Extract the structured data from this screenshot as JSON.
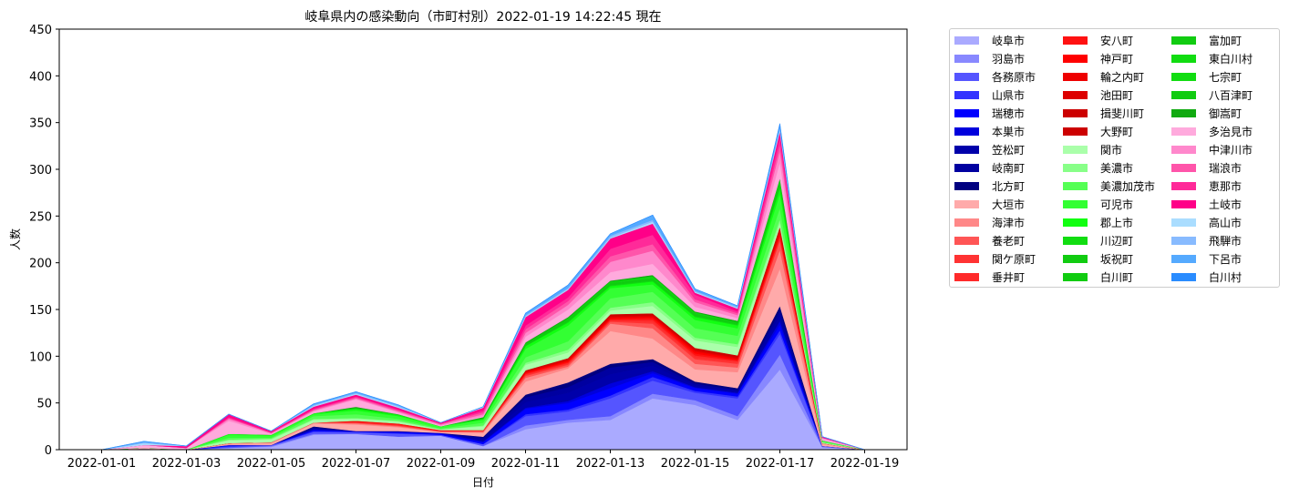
{
  "chart_data": {
    "type": "area",
    "stacked": true,
    "title": "岐阜県内の感染動向（市町村別）2022-01-19 14:22:45 現在",
    "xlabel": "日付",
    "ylabel": "人数",
    "ylim": [
      0,
      450
    ],
    "yticks": [
      "0",
      "50",
      "100",
      "150",
      "200",
      "250",
      "300",
      "350",
      "400",
      "450"
    ],
    "x": [
      "2022-01-01",
      "2022-01-02",
      "2022-01-03",
      "2022-01-04",
      "2022-01-05",
      "2022-01-06",
      "2022-01-07",
      "2022-01-08",
      "2022-01-09",
      "2022-01-10",
      "2022-01-11",
      "2022-01-12",
      "2022-01-13",
      "2022-01-14",
      "2022-01-15",
      "2022-01-16",
      "2022-01-17",
      "2022-01-18",
      "2022-01-19"
    ],
    "xticks": [
      "2022-01-01",
      "2022-01-03",
      "2022-01-05",
      "2022-01-07",
      "2022-01-09",
      "2022-01-11",
      "2022-01-13",
      "2022-01-15",
      "2022-01-17",
      "2022-01-19"
    ],
    "grid": false,
    "legend_position": "outside-right",
    "series": [
      {
        "name": "岐阜市",
        "color": "#aaaaff",
        "values": [
          0,
          1,
          0,
          2,
          3,
          16,
          17,
          14,
          15,
          4,
          22,
          29,
          32,
          55,
          48,
          32,
          86,
          3,
          0
        ]
      },
      {
        "name": "羽島市",
        "color": "#8888ff",
        "values": [
          0,
          0,
          0,
          0,
          1,
          1,
          0,
          0,
          0,
          0,
          4,
          3,
          4,
          5,
          5,
          4,
          16,
          0,
          0
        ]
      },
      {
        "name": "各務原市",
        "color": "#5555ff",
        "values": [
          0,
          0,
          0,
          1,
          1,
          2,
          2,
          3,
          1,
          2,
          10,
          9,
          19,
          14,
          8,
          19,
          22,
          1,
          0
        ]
      },
      {
        "name": "山県市",
        "color": "#3333ff",
        "values": [
          0,
          0,
          0,
          1,
          0,
          1,
          0,
          1,
          0,
          0,
          2,
          2,
          3,
          4,
          2,
          2,
          4,
          0,
          0
        ]
      },
      {
        "name": "瑞穂市",
        "color": "#0000ff",
        "values": [
          0,
          0,
          0,
          1,
          0,
          1,
          0,
          1,
          1,
          2,
          6,
          7,
          8,
          4,
          3,
          3,
          6,
          0,
          0
        ]
      },
      {
        "name": "本巣市",
        "color": "#0000dd",
        "values": [
          0,
          0,
          0,
          0,
          0,
          1,
          1,
          0,
          1,
          1,
          1,
          2,
          5,
          2,
          1,
          1,
          4,
          0,
          0
        ]
      },
      {
        "name": "笠松町",
        "color": "#0000aa",
        "values": [
          0,
          0,
          0,
          0,
          0,
          1,
          0,
          1,
          0,
          2,
          6,
          9,
          10,
          6,
          2,
          2,
          6,
          0,
          0
        ]
      },
      {
        "name": "岐南町",
        "color": "#0000a0",
        "values": [
          0,
          0,
          0,
          0,
          0,
          1,
          0,
          0,
          0,
          2,
          5,
          6,
          7,
          4,
          2,
          1,
          5,
          0,
          0
        ]
      },
      {
        "name": "北方町",
        "color": "#000080",
        "values": [
          0,
          0,
          0,
          0,
          0,
          1,
          0,
          0,
          0,
          1,
          3,
          5,
          4,
          3,
          2,
          2,
          5,
          0,
          0
        ]
      },
      {
        "name": "大垣市",
        "color": "#ffaaaa",
        "values": [
          0,
          1,
          0,
          1,
          2,
          3,
          7,
          4,
          1,
          4,
          14,
          15,
          35,
          22,
          13,
          17,
          40,
          2,
          0
        ]
      },
      {
        "name": "海津市",
        "color": "#ff8888",
        "values": [
          0,
          0,
          0,
          1,
          1,
          1,
          1,
          1,
          0,
          1,
          4,
          2,
          8,
          11,
          6,
          5,
          20,
          1,
          0
        ]
      },
      {
        "name": "養老町",
        "color": "#ff5555",
        "values": [
          0,
          0,
          0,
          0,
          0,
          0,
          1,
          1,
          1,
          1,
          2,
          2,
          2,
          5,
          5,
          4,
          10,
          0,
          0
        ]
      },
      {
        "name": "関ケ原町",
        "color": "#ff3333",
        "values": [
          0,
          0,
          0,
          0,
          0,
          0,
          0,
          0,
          0,
          0,
          1,
          1,
          1,
          2,
          2,
          2,
          1,
          0,
          0
        ]
      },
      {
        "name": "垂井町",
        "color": "#ff2a2a",
        "values": [
          0,
          0,
          0,
          0,
          0,
          0,
          1,
          1,
          0,
          1,
          1,
          1,
          1,
          2,
          2,
          1,
          3,
          0,
          0
        ]
      },
      {
        "name": "安八町",
        "color": "#ff1111",
        "values": [
          0,
          0,
          0,
          0,
          0,
          0,
          0,
          1,
          1,
          0,
          1,
          1,
          1,
          2,
          2,
          1,
          2,
          0,
          0
        ]
      },
      {
        "name": "神戸町",
        "color": "#ff0000",
        "values": [
          0,
          0,
          0,
          0,
          0,
          0,
          1,
          0,
          0,
          0,
          1,
          1,
          1,
          1,
          2,
          1,
          2,
          0,
          0
        ]
      },
      {
        "name": "輪之内町",
        "color": "#ee0000",
        "values": [
          0,
          0,
          0,
          0,
          0,
          0,
          0,
          0,
          0,
          0,
          0,
          1,
          1,
          1,
          1,
          1,
          2,
          0,
          0
        ]
      },
      {
        "name": "池田町",
        "color": "#dd0000",
        "values": [
          0,
          0,
          0,
          0,
          0,
          0,
          0,
          0,
          0,
          0,
          1,
          1,
          1,
          1,
          1,
          1,
          2,
          0,
          0
        ]
      },
      {
        "name": "揖斐川町",
        "color": "#cc0000",
        "values": [
          0,
          0,
          0,
          0,
          0,
          0,
          0,
          0,
          0,
          0,
          0,
          1,
          1,
          1,
          1,
          1,
          2,
          0,
          0
        ]
      },
      {
        "name": "大野町",
        "color": "#cc0000",
        "values": [
          0,
          0,
          0,
          0,
          0,
          0,
          0,
          0,
          0,
          0,
          1,
          0,
          1,
          1,
          1,
          1,
          1,
          0,
          0
        ]
      },
      {
        "name": "関市",
        "color": "#aaffaa",
        "values": [
          0,
          0,
          0,
          3,
          3,
          3,
          2,
          2,
          1,
          4,
          6,
          6,
          4,
          8,
          8,
          9,
          4,
          1,
          0
        ]
      },
      {
        "name": "美濃市",
        "color": "#88ff88",
        "values": [
          0,
          0,
          0,
          1,
          1,
          1,
          1,
          1,
          0,
          1,
          2,
          3,
          3,
          4,
          3,
          3,
          4,
          0,
          0
        ]
      },
      {
        "name": "美濃加茂市",
        "color": "#55ff55",
        "values": [
          0,
          0,
          0,
          2,
          1,
          3,
          4,
          2,
          1,
          3,
          6,
          9,
          10,
          11,
          10,
          9,
          12,
          1,
          0
        ]
      },
      {
        "name": "可児市",
        "color": "#33ff33",
        "values": [
          0,
          0,
          0,
          3,
          2,
          2,
          4,
          3,
          2,
          3,
          9,
          17,
          11,
          8,
          9,
          8,
          15,
          1,
          0
        ]
      },
      {
        "name": "郡上市",
        "color": "#11ff11",
        "values": [
          0,
          0,
          0,
          1,
          1,
          1,
          2,
          1,
          0,
          1,
          3,
          3,
          2,
          3,
          3,
          3,
          6,
          0,
          0
        ]
      },
      {
        "name": "川辺町",
        "color": "#11dd11",
        "values": [
          0,
          0,
          0,
          0,
          0,
          0,
          0,
          1,
          0,
          0,
          0,
          1,
          1,
          1,
          1,
          1,
          2,
          0,
          0
        ]
      },
      {
        "name": "坂祝町",
        "color": "#11cc11",
        "values": [
          0,
          0,
          0,
          0,
          0,
          0,
          1,
          0,
          0,
          1,
          1,
          1,
          1,
          1,
          1,
          1,
          2,
          0,
          0
        ]
      },
      {
        "name": "白川町",
        "color": "#11cc11",
        "values": [
          0,
          0,
          0,
          0,
          0,
          0,
          0,
          0,
          0,
          0,
          1,
          1,
          1,
          1,
          1,
          1,
          2,
          0,
          0
        ]
      },
      {
        "name": "富加町",
        "color": "#11cc11",
        "values": [
          0,
          0,
          0,
          0,
          0,
          0,
          0,
          0,
          0,
          0,
          0,
          1,
          1,
          1,
          1,
          0,
          1,
          0,
          0
        ]
      },
      {
        "name": "東白川村",
        "color": "#11dd11",
        "values": [
          0,
          0,
          0,
          0,
          0,
          0,
          0,
          0,
          0,
          0,
          0,
          0,
          0,
          1,
          0,
          0,
          1,
          0,
          0
        ]
      },
      {
        "name": "七宗町",
        "color": "#11dd11",
        "values": [
          0,
          0,
          0,
          0,
          0,
          0,
          0,
          0,
          0,
          0,
          0,
          0,
          1,
          0,
          1,
          0,
          1,
          0,
          0
        ]
      },
      {
        "name": "八百津町",
        "color": "#11cc11",
        "values": [
          0,
          0,
          0,
          0,
          0,
          0,
          0,
          0,
          0,
          0,
          1,
          1,
          0,
          1,
          0,
          1,
          1,
          0,
          0
        ]
      },
      {
        "name": "御嵩町",
        "color": "#11aa11",
        "values": [
          0,
          0,
          0,
          0,
          0,
          0,
          1,
          0,
          0,
          1,
          1,
          1,
          1,
          1,
          1,
          1,
          1,
          0,
          0
        ]
      },
      {
        "name": "多治見市",
        "color": "#ffaadd",
        "values": [
          0,
          3,
          2,
          14,
          1,
          2,
          8,
          2,
          1,
          1,
          6,
          8,
          9,
          12,
          5,
          3,
          17,
          2,
          0
        ]
      },
      {
        "name": "中津川市",
        "color": "#ff88cc",
        "values": [
          0,
          0,
          0,
          2,
          1,
          1,
          1,
          1,
          1,
          2,
          4,
          5,
          11,
          14,
          5,
          3,
          12,
          1,
          0
        ]
      },
      {
        "name": "瑞浪市",
        "color": "#ff55aa",
        "values": [
          0,
          0,
          0,
          1,
          0,
          1,
          1,
          1,
          1,
          2,
          4,
          4,
          6,
          7,
          3,
          2,
          7,
          0,
          0
        ]
      },
      {
        "name": "恵那市",
        "color": "#ff2a99",
        "values": [
          0,
          0,
          0,
          1,
          1,
          1,
          1,
          1,
          0,
          2,
          4,
          4,
          8,
          10,
          5,
          2,
          8,
          0,
          0
        ]
      },
      {
        "name": "土岐市",
        "color": "#ff0088",
        "values": [
          0,
          0,
          2,
          3,
          1,
          2,
          2,
          2,
          1,
          3,
          9,
          8,
          11,
          12,
          2,
          3,
          6,
          1,
          0
        ]
      },
      {
        "name": "高山市",
        "color": "#aaddff",
        "values": [
          0,
          2,
          0,
          0,
          0,
          1,
          1,
          1,
          0,
          1,
          1,
          1,
          1,
          2,
          1,
          1,
          2,
          0,
          0
        ]
      },
      {
        "name": "飛騨市",
        "color": "#88bbff",
        "values": [
          0,
          1,
          0,
          0,
          0,
          1,
          1,
          1,
          0,
          0,
          1,
          1,
          2,
          2,
          1,
          1,
          2,
          0,
          0
        ]
      },
      {
        "name": "下呂市",
        "color": "#55aaff",
        "values": [
          0,
          1,
          0,
          0,
          0,
          1,
          1,
          1,
          0,
          0,
          2,
          3,
          2,
          5,
          2,
          1,
          3,
          0,
          0
        ]
      },
      {
        "name": "白川村",
        "color": "#2a8cff",
        "values": [
          0,
          0,
          0,
          0,
          0,
          0,
          0,
          0,
          0,
          0,
          0,
          0,
          0,
          0,
          0,
          0,
          1,
          0,
          0
        ]
      }
    ]
  }
}
